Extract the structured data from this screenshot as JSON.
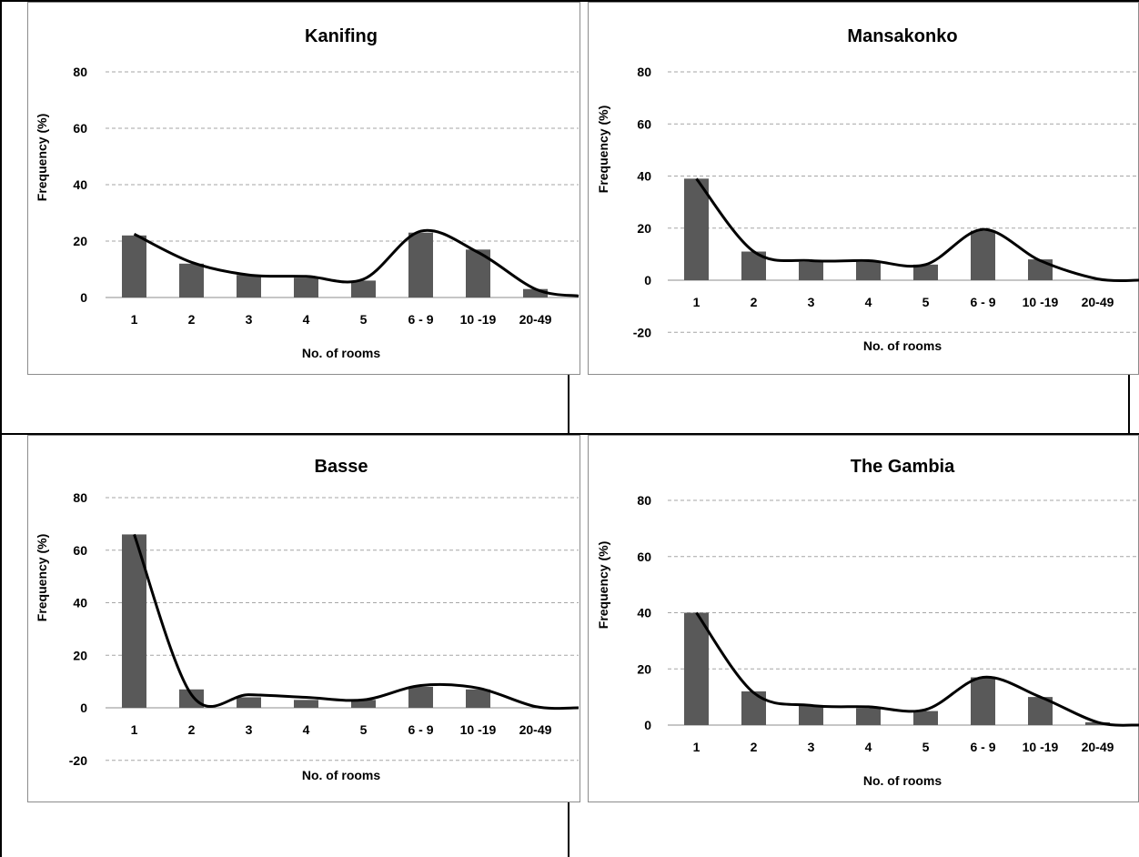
{
  "styles": {
    "bar_color": "#595959",
    "line_color": "#000000",
    "grid_color": "#a6a6a6"
  },
  "chart_data": [
    {
      "type": "bar",
      "title": "Kanifing",
      "categories": [
        "1",
        "2",
        "3",
        "4",
        "5",
        "6 - 9",
        "10 -19",
        "20-49"
      ],
      "series": [
        {
          "values": [
            22,
            12,
            8,
            7,
            6,
            23,
            17,
            3
          ]
        }
      ],
      "trend": {
        "type": "smoothed line",
        "values": [
          22.5,
          12.5,
          8,
          7.5,
          6.5,
          23.5,
          16,
          3,
          0.5
        ]
      },
      "ylabel": "Frequency (%)",
      "xlabel": "No. of rooms",
      "ylim": [
        0,
        80
      ],
      "yticks": [
        "0",
        "20",
        "40",
        "60",
        "80"
      ],
      "grid": true
    },
    {
      "type": "bar",
      "title": "Mansakonko",
      "categories": [
        "1",
        "2",
        "3",
        "4",
        "5",
        "6 - 9",
        "10 -19",
        "20-49"
      ],
      "series": [
        {
          "values": [
            39,
            11,
            7,
            7,
            6,
            19,
            8,
            0
          ]
        }
      ],
      "trend": {
        "type": "smoothed line",
        "values": [
          39,
          11,
          7.5,
          7.5,
          6,
          19.5,
          7.5,
          0.5,
          0
        ]
      },
      "ylabel": "Frequency (%)",
      "xlabel": "No. of rooms",
      "ylim": [
        -20,
        80
      ],
      "yticks": [
        "-20",
        "0",
        "20",
        "40",
        "60",
        "80"
      ],
      "grid": true
    },
    {
      "type": "bar",
      "title": "Basse",
      "categories": [
        "1",
        "2",
        "3",
        "4",
        "5",
        "6 - 9",
        "10 -19",
        "20-49"
      ],
      "series": [
        {
          "values": [
            66,
            7,
            4,
            3,
            3,
            8,
            7,
            0
          ]
        }
      ],
      "trend": {
        "type": "smoothed line",
        "values": [
          66,
          5,
          5,
          4,
          3,
          8.5,
          7.5,
          0.5,
          0
        ]
      },
      "ylabel": "Frequency (%)",
      "xlabel": "No. of rooms",
      "ylim": [
        -20,
        80
      ],
      "yticks": [
        "-20",
        "0",
        "20",
        "40",
        "60",
        "80"
      ],
      "grid": true
    },
    {
      "type": "bar",
      "title": "The Gambia",
      "categories": [
        "1",
        "2",
        "3",
        "4",
        "5",
        "6 - 9",
        "10 -19",
        "20-49"
      ],
      "series": [
        {
          "values": [
            40,
            12,
            7,
            6,
            5,
            17,
            10,
            1
          ]
        }
      ],
      "trend": {
        "type": "smoothed line",
        "values": [
          40,
          11.5,
          7,
          6.5,
          5.5,
          17,
          10,
          1,
          0
        ]
      },
      "ylabel": "Frequency (%)",
      "xlabel": "No. of rooms",
      "ylim": [
        0,
        80
      ],
      "yticks": [
        "0",
        "20",
        "40",
        "60",
        "80"
      ],
      "grid": true
    }
  ]
}
